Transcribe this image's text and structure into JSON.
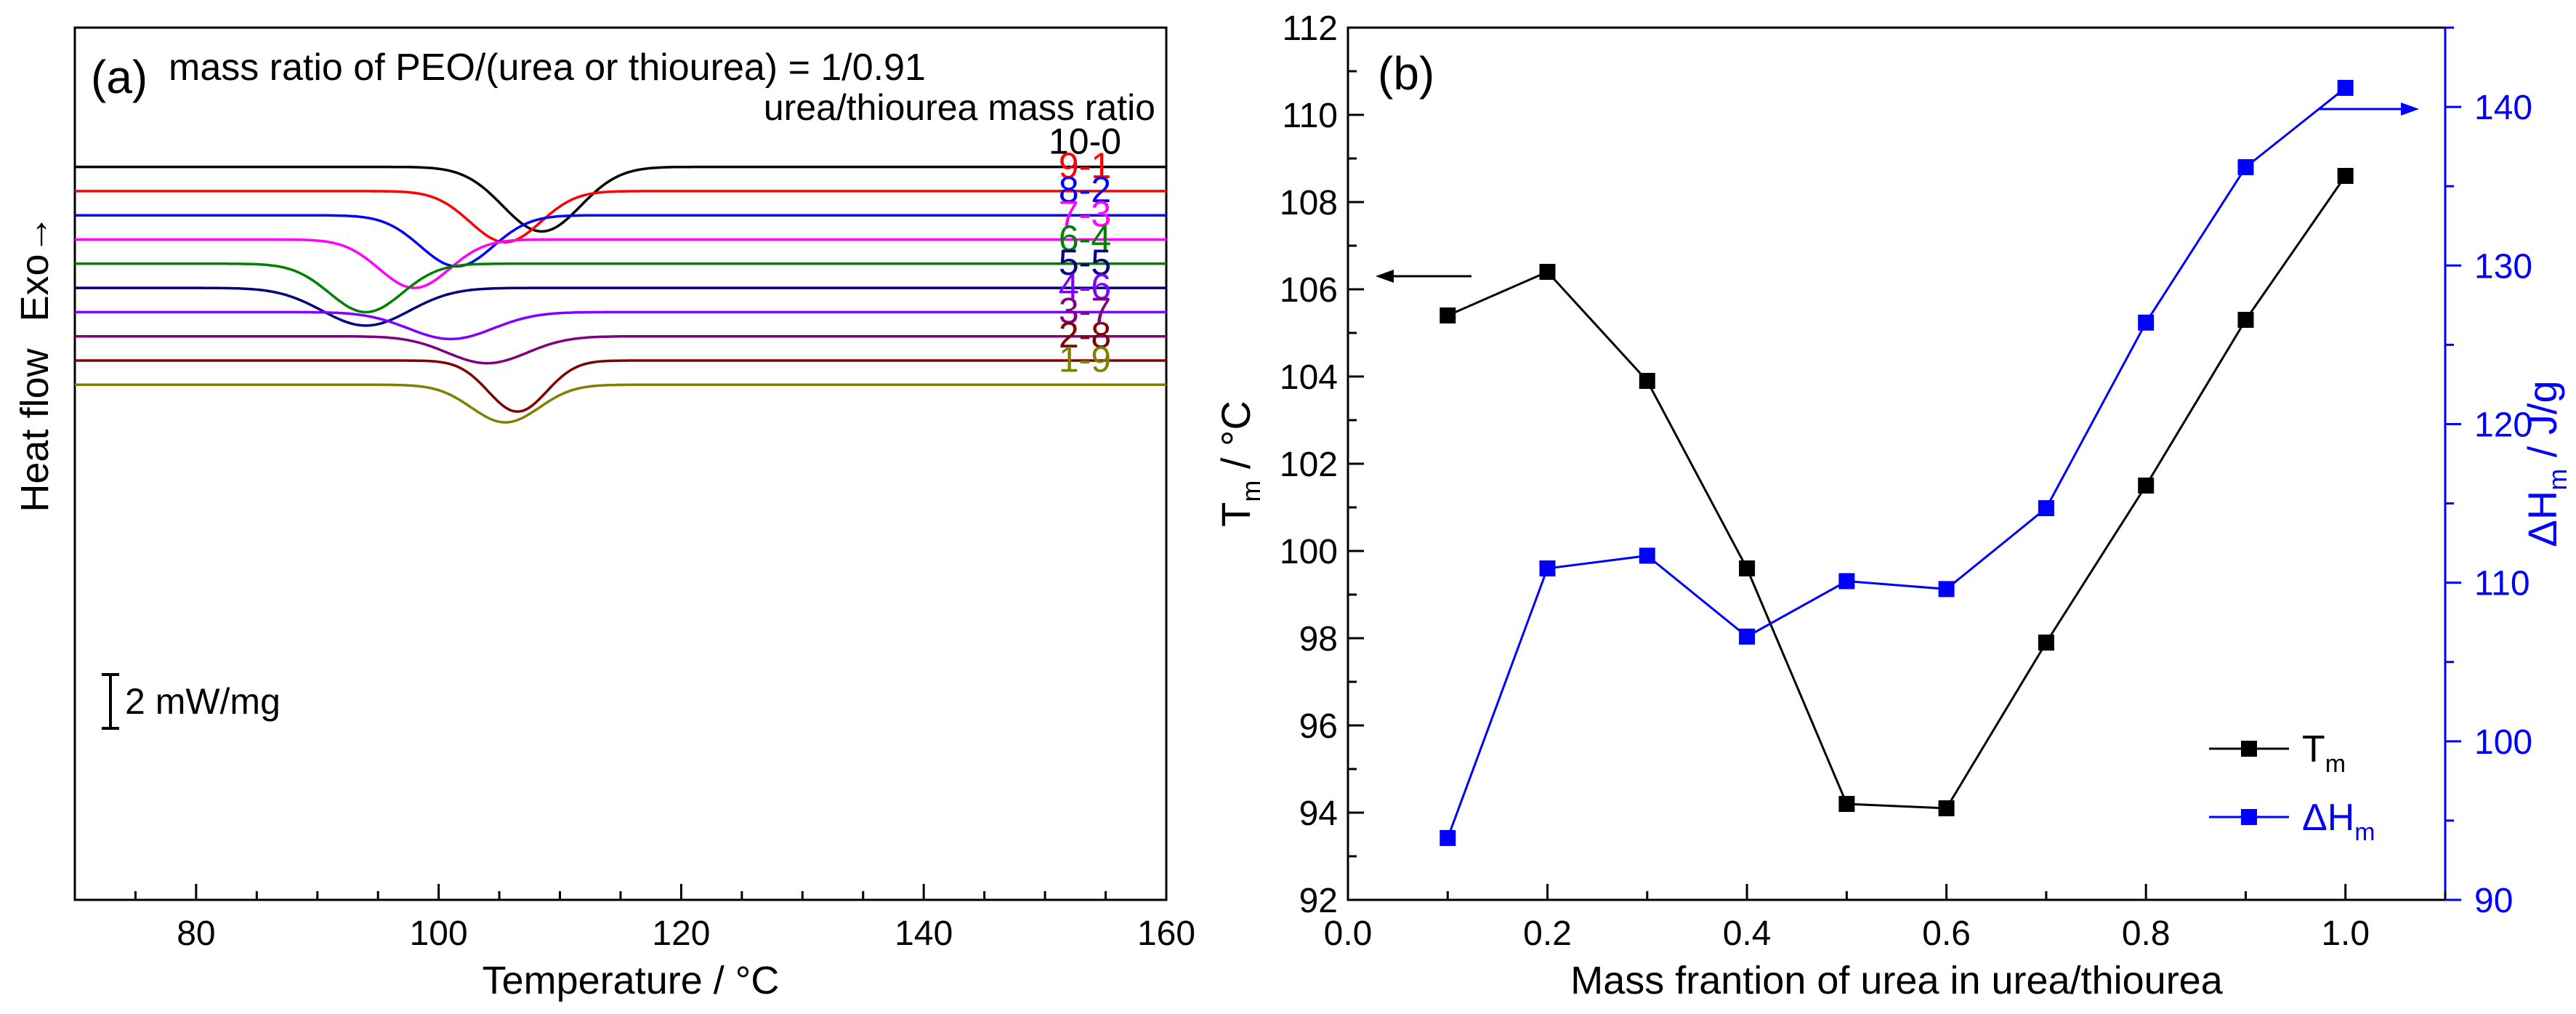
{
  "chart_data": [
    {
      "type": "line",
      "panel_label": "(a)",
      "title": "mass ratio of PEO/(urea or thiourea) = 1/0.91",
      "legend_title": "urea/thiourea mass ratio",
      "xlabel": "Temperature / °C",
      "ylabel": "Heat flow",
      "ylabel_exo": "Exo→",
      "xlim": [
        70,
        160
      ],
      "xticks": [
        80,
        100,
        120,
        140,
        160
      ],
      "scale_bar_label": "2 mW/mg",
      "series": [
        {
          "name": "10-0",
          "color": "#000000",
          "baseline": -0.8,
          "peak_temperature": 108.5,
          "peak_depth": 2.4,
          "peak_width": 3.2
        },
        {
          "name": "9-1",
          "color": "#ff0000",
          "baseline": -1.7,
          "peak_temperature": 105.5,
          "peak_depth": 1.9,
          "peak_width": 2.9
        },
        {
          "name": "8-2",
          "color": "#0000ff",
          "baseline": -2.6,
          "peak_temperature": 101.5,
          "peak_depth": 1.9,
          "peak_width": 3.0
        },
        {
          "name": "7-3",
          "color": "#ff00ff",
          "baseline": -3.5,
          "peak_temperature": 98.0,
          "peak_depth": 1.8,
          "peak_width": 2.9
        },
        {
          "name": "6-4",
          "color": "#008000",
          "baseline": -4.4,
          "peak_temperature": 94.0,
          "peak_depth": 1.8,
          "peak_width": 3.0
        },
        {
          "name": "5-5",
          "color": "#000080",
          "baseline": -5.3,
          "peak_temperature": 94.0,
          "peak_depth": 1.4,
          "peak_width": 3.6
        },
        {
          "name": "4-6",
          "color": "#8000ff",
          "baseline": -6.2,
          "peak_temperature": 101.0,
          "peak_depth": 1.0,
          "peak_width": 3.5
        },
        {
          "name": "3-7",
          "color": "#800080",
          "baseline": -7.1,
          "peak_temperature": 104.0,
          "peak_depth": 1.0,
          "peak_width": 3.3
        },
        {
          "name": "2-8",
          "color": "#800000",
          "baseline": -8.0,
          "peak_temperature": 106.5,
          "peak_depth": 1.9,
          "peak_width": 2.4
        },
        {
          "name": "1-9",
          "color": "#808000",
          "baseline": -8.9,
          "peak_temperature": 105.5,
          "peak_depth": 1.4,
          "peak_width": 2.8
        }
      ]
    },
    {
      "type": "line",
      "panel_label": "(b)",
      "xlabel": "Mass frantion of urea in urea/thiourea",
      "ylabel_left": "T",
      "ylabel_left_sub": "m",
      "ylabel_left_unit": " / °C",
      "ylabel_right": "ΔH",
      "ylabel_right_sub": "m",
      "ylabel_right_unit": " / J/g",
      "xlim": [
        0.0,
        1.1
      ],
      "ylim_left": [
        92,
        112
      ],
      "ylim_right": [
        90,
        145
      ],
      "xticks": [
        "0.0",
        "0.2",
        "0.4",
        "0.6",
        "0.8",
        "1.0"
      ],
      "yticks_left": [
        92,
        94,
        96,
        98,
        100,
        102,
        104,
        106,
        108,
        110,
        112
      ],
      "yticks_right": [
        90,
        100,
        110,
        120,
        130,
        140
      ],
      "legend_position": "bottom-right",
      "series": [
        {
          "name": "T",
          "subscript": "m",
          "axis": "left",
          "color": "#000000",
          "x": [
            0.1,
            0.2,
            0.3,
            0.4,
            0.5,
            0.6,
            0.7,
            0.8,
            0.9,
            1.0
          ],
          "y": [
            105.4,
            106.4,
            103.9,
            99.6,
            94.2,
            94.1,
            97.9,
            101.5,
            105.3,
            108.6
          ]
        },
        {
          "name": "ΔH",
          "subscript": "m",
          "axis": "right",
          "color": "#0000ff",
          "x": [
            0.1,
            0.2,
            0.3,
            0.4,
            0.5,
            0.6,
            0.7,
            0.8,
            0.9,
            1.0
          ],
          "y": [
            93.9,
            110.9,
            111.7,
            106.6,
            110.1,
            109.6,
            114.7,
            126.4,
            136.2,
            141.2
          ]
        }
      ]
    }
  ]
}
